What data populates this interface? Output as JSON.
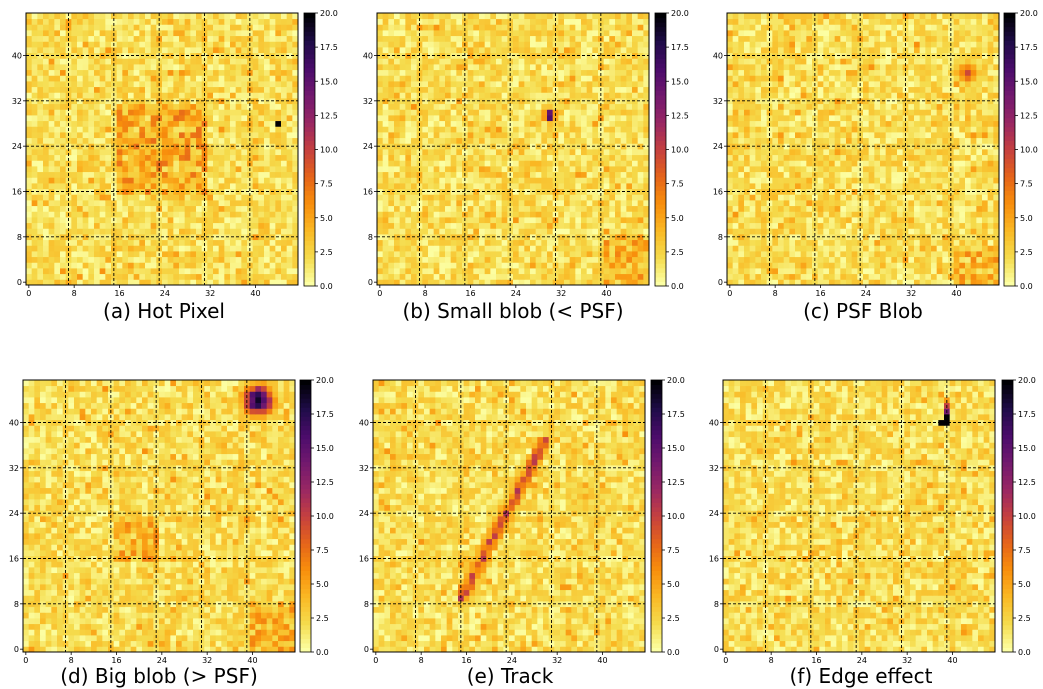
{
  "chart_data": [
    {
      "type": "heatmap",
      "title": "(a) Hot Pixel",
      "grid_size": 48,
      "xticks": [
        0,
        8,
        16,
        24,
        32,
        40
      ],
      "yticks": [
        0,
        8,
        16,
        24,
        32,
        40
      ],
      "colorbar_ticks": [
        "0.0",
        "2.5",
        "5.0",
        "7.5",
        "10.0",
        "12.5",
        "15.0",
        "17.5",
        "20.0"
      ],
      "vmin": 0,
      "vmax": 20,
      "colormap": "inferno_r",
      "grid_lines": true,
      "features": [
        {
          "kind": "region",
          "x": [
            16,
            31
          ],
          "y": [
            16,
            31
          ],
          "value": 7
        },
        {
          "kind": "pixel",
          "x": 44,
          "y": 28,
          "value": 20
        }
      ]
    },
    {
      "type": "heatmap",
      "title": "(b) Small blob (< PSF)",
      "grid_size": 48,
      "xticks": [
        0,
        8,
        16,
        24,
        32,
        40
      ],
      "yticks": [
        0,
        8,
        16,
        24,
        32,
        40
      ],
      "colorbar_ticks": [
        "0.0",
        "2.5",
        "5.0",
        "7.5",
        "10.0",
        "12.5",
        "15.0",
        "17.5",
        "20.0"
      ],
      "vmin": 0,
      "vmax": 20,
      "colormap": "inferno_r",
      "grid_lines": true,
      "features": [
        {
          "kind": "blob",
          "x": 30,
          "y": 29.5,
          "sigma": 0.7,
          "value": 19
        },
        {
          "kind": "region",
          "x": [
            40,
            47
          ],
          "y": [
            0,
            8
          ],
          "value": 6
        }
      ]
    },
    {
      "type": "heatmap",
      "title": "(c) PSF Blob",
      "grid_size": 48,
      "xticks": [
        0,
        8,
        16,
        24,
        32,
        40
      ],
      "yticks": [
        0,
        8,
        16,
        24,
        32,
        40
      ],
      "colorbar_ticks": [
        "0.0",
        "2.5",
        "5.0",
        "7.5",
        "10.0",
        "12.5",
        "15.0",
        "17.5",
        "20.0"
      ],
      "vmin": 0,
      "vmax": 20,
      "colormap": "inferno_r",
      "grid_lines": true,
      "features": [
        {
          "kind": "blob",
          "x": 42,
          "y": 37,
          "sigma": 1.3,
          "value": 10
        },
        {
          "kind": "region",
          "x": [
            40,
            47
          ],
          "y": [
            0,
            6
          ],
          "value": 6
        }
      ]
    },
    {
      "type": "heatmap",
      "title": "(d) Big blob (> PSF)",
      "grid_size": 48,
      "xticks": [
        0,
        8,
        16,
        24,
        32,
        40
      ],
      "yticks": [
        0,
        8,
        16,
        24,
        32,
        40
      ],
      "colorbar_ticks": [
        "0.0",
        "2.5",
        "5.0",
        "7.5",
        "10.0",
        "12.5",
        "15.0",
        "17.5",
        "20.0"
      ],
      "vmin": 0,
      "vmax": 20,
      "colormap": "inferno_r",
      "grid_lines": true,
      "features": [
        {
          "kind": "blob",
          "x": 41,
          "y": 44,
          "sigma": 1.9,
          "value": 19
        },
        {
          "kind": "region",
          "x": [
            16,
            23
          ],
          "y": [
            16,
            23
          ],
          "value": 6
        },
        {
          "kind": "region",
          "x": [
            40,
            47
          ],
          "y": [
            0,
            8
          ],
          "value": 6
        }
      ]
    },
    {
      "type": "heatmap",
      "title": "(e) Track",
      "grid_size": 48,
      "xticks": [
        0,
        8,
        16,
        24,
        32,
        40
      ],
      "yticks": [
        0,
        8,
        16,
        24,
        32,
        40
      ],
      "colorbar_ticks": [
        "0.0",
        "2.5",
        "5.0",
        "7.5",
        "10.0",
        "12.5",
        "15.0",
        "17.5",
        "20.0"
      ],
      "vmin": 0,
      "vmax": 20,
      "colormap": "inferno_r",
      "grid_lines": true,
      "features": [
        {
          "kind": "track",
          "from": [
            15,
            9
          ],
          "to": [
            30,
            37
          ],
          "width": 1.5,
          "value": 11
        }
      ]
    },
    {
      "type": "heatmap",
      "title": "(f) Edge effect",
      "grid_size": 48,
      "xticks": [
        0,
        8,
        16,
        24,
        32,
        40
      ],
      "yticks": [
        0,
        8,
        16,
        24,
        32,
        40
      ],
      "colorbar_ticks": [
        "0.0",
        "2.5",
        "5.0",
        "7.5",
        "10.0",
        "12.5",
        "15.0",
        "17.5",
        "20.0"
      ],
      "vmin": 0,
      "vmax": 20,
      "colormap": "inferno_r",
      "grid_lines": true,
      "features": [
        {
          "kind": "pixel",
          "x": 38,
          "y": 40,
          "value": 20
        },
        {
          "kind": "pixel",
          "x": 39,
          "y": 40,
          "value": 20
        },
        {
          "kind": "pixel",
          "x": 39,
          "y": 41,
          "value": 20
        },
        {
          "kind": "pixel",
          "x": 39,
          "y": 42,
          "value": 14
        },
        {
          "kind": "pixel",
          "x": 39,
          "y": 43,
          "value": 10
        }
      ]
    }
  ]
}
